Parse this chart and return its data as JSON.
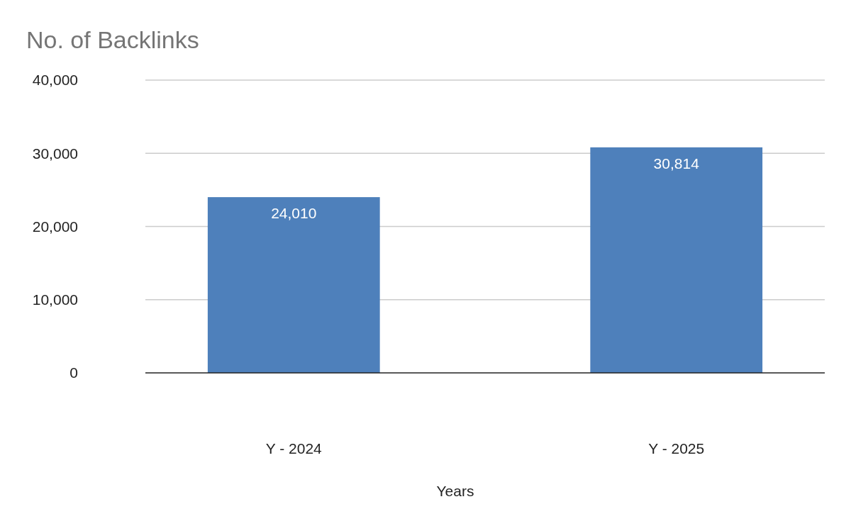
{
  "chart_data": {
    "type": "bar",
    "title": "No. of Backlinks",
    "xlabel": "Years",
    "categories": [
      "Y - 2024",
      "Y - 2025"
    ],
    "values": [
      24010,
      30814
    ],
    "color": "#4e80bb",
    "ylim": [
      0,
      40000
    ],
    "yticks": [
      {
        "value": 0,
        "label": "0"
      },
      {
        "value": 10000,
        "label": "10,000"
      },
      {
        "value": 20000,
        "label": "20,000"
      },
      {
        "value": 30000,
        "label": "30,000"
      },
      {
        "value": 40000,
        "label": "40,000"
      }
    ],
    "grid": true,
    "value_labels": [
      "24,010",
      "30,814"
    ]
  }
}
